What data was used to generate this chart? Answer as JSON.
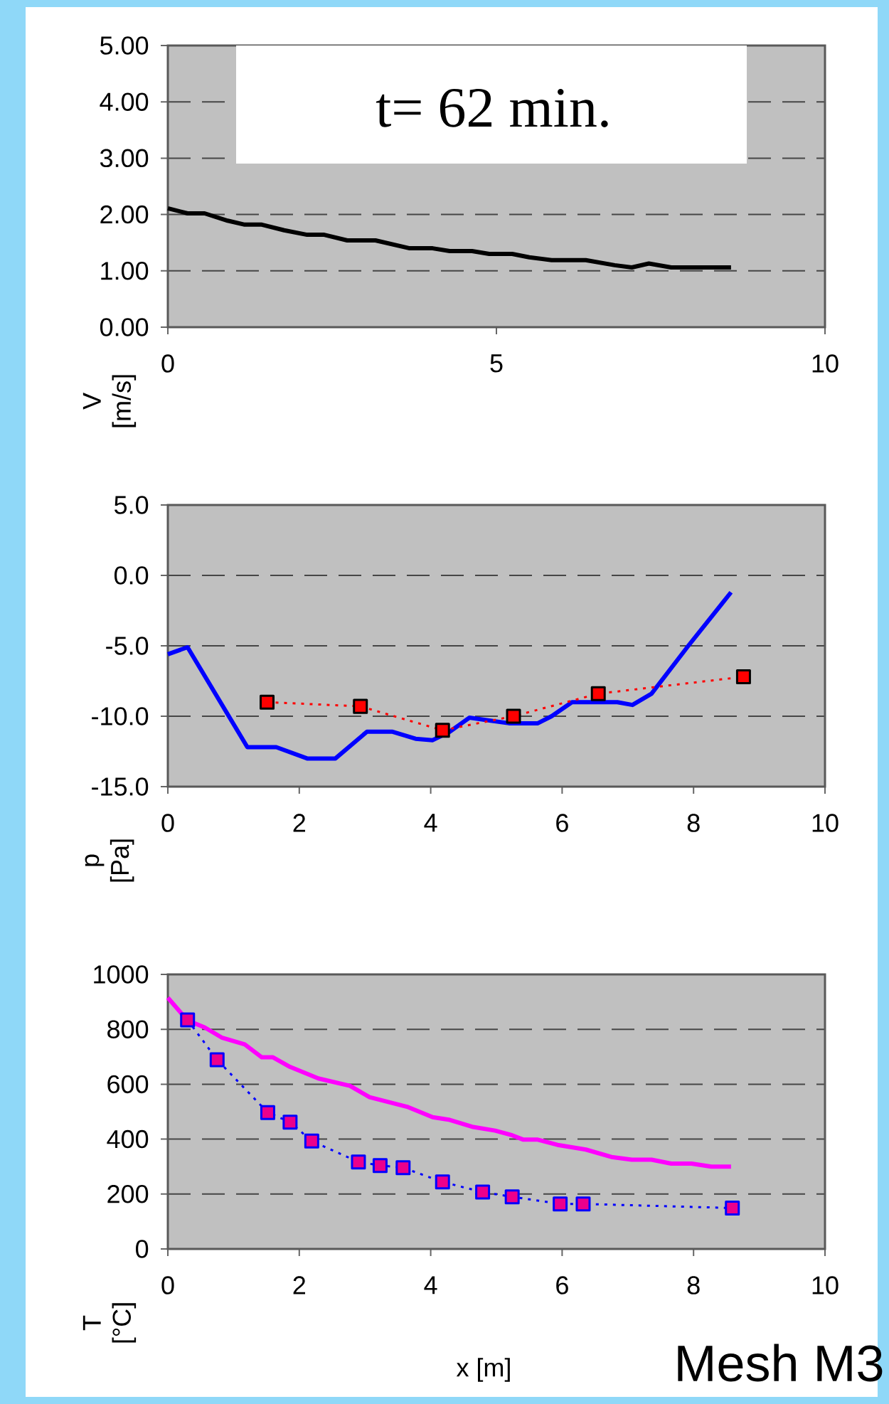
{
  "chart_data": [
    {
      "type": "line",
      "title": "t= 62 min.",
      "ylabel": "V [m/s]",
      "xlim": [
        0,
        10
      ],
      "xticks": [
        0,
        5,
        10
      ],
      "ylim": [
        0,
        5
      ],
      "yticks": [
        {
          "value": 0,
          "label": "0.00"
        },
        {
          "value": 1,
          "label": "1.00"
        },
        {
          "value": 2,
          "label": "2.00"
        },
        {
          "value": 3,
          "label": "3.00"
        },
        {
          "value": 4,
          "label": "4.00"
        },
        {
          "value": 5,
          "label": "5.00"
        }
      ],
      "grid": "y",
      "series": [
        {
          "color": "#000000",
          "line_style": "solid",
          "marker": "none",
          "x": [
            0,
            0.3,
            0.56,
            0.91,
            1.17,
            1.43,
            1.77,
            2.12,
            2.38,
            2.73,
            3.16,
            3.68,
            4.03,
            4.29,
            4.63,
            4.89,
            5.24,
            5.5,
            5.84,
            6.36,
            6.8,
            7.06,
            7.32,
            7.66,
            8.57
          ],
          "values": [
            2.11,
            2.02,
            2.02,
            1.89,
            1.82,
            1.82,
            1.72,
            1.64,
            1.64,
            1.54,
            1.54,
            1.4,
            1.4,
            1.35,
            1.35,
            1.3,
            1.3,
            1.24,
            1.19,
            1.19,
            1.1,
            1.06,
            1.13,
            1.06,
            1.06
          ]
        }
      ]
    },
    {
      "type": "line",
      "ylabel": "p [Pa]",
      "xlim": [
        0,
        10
      ],
      "xticks": [
        0,
        2,
        4,
        6,
        8,
        10
      ],
      "ylim": [
        -15,
        5
      ],
      "yticks": [
        {
          "value": -15,
          "label": "-15.0"
        },
        {
          "value": -10,
          "label": "-10.0"
        },
        {
          "value": -5,
          "label": "-5.0"
        },
        {
          "value": 0,
          "label": "0.0"
        },
        {
          "value": 5,
          "label": "5.0"
        }
      ],
      "grid": "y",
      "series": [
        {
          "color": "#0000ff",
          "line_style": "solid",
          "marker": "none",
          "x": [
            0,
            0.3,
            1.21,
            1.65,
            2.12,
            2.55,
            3.03,
            3.42,
            3.77,
            4.03,
            4.29,
            4.59,
            4.89,
            5.19,
            5.63,
            5.84,
            6.15,
            6.49,
            6.84,
            7.07,
            7.36,
            7.92,
            8.57
          ],
          "values": [
            -5.6,
            -5.1,
            -12.2,
            -12.2,
            -13.0,
            -13.0,
            -11.1,
            -11.1,
            -11.6,
            -11.7,
            -11.1,
            -10.1,
            -10.3,
            -10.5,
            -10.5,
            -10.0,
            -9.0,
            -9.0,
            -9.0,
            -9.2,
            -8.4,
            -5.0,
            -1.2
          ]
        },
        {
          "type": "line",
          "color": "#ff0000",
          "line_style": "dotted",
          "marker": "square",
          "x": [
            1.51,
            2.93,
            4.18,
            5.26,
            6.55,
            8.76
          ],
          "values": [
            -9.0,
            -9.3,
            -11.0,
            -10.0,
            -8.4,
            -7.2
          ]
        }
      ]
    },
    {
      "type": "line",
      "ylabel": "T [°C]",
      "xlabel": "x [m]",
      "annotations": [
        "Mesh M3"
      ],
      "xlim": [
        0,
        10
      ],
      "xticks": [
        0,
        2,
        4,
        6,
        8,
        10
      ],
      "ylim": [
        0,
        1000
      ],
      "yticks": [
        0,
        200,
        400,
        600,
        800,
        1000
      ],
      "grid": "y",
      "series": [
        {
          "color": "#ff00ff",
          "line_style": "solid",
          "marker": "none",
          "x": [
            0,
            0.3,
            0.56,
            0.82,
            1.17,
            1.43,
            1.6,
            1.86,
            2.29,
            2.77,
            3.07,
            3.64,
            4.03,
            4.29,
            4.63,
            4.98,
            5.24,
            5.41,
            5.63,
            5.93,
            6.36,
            6.75,
            7.06,
            7.36,
            7.66,
            7.97,
            8.27,
            8.57
          ],
          "values": [
            915,
            832,
            807,
            770,
            745,
            698,
            698,
            663,
            621,
            594,
            553,
            518,
            480,
            470,
            445,
            431,
            414,
            398,
            398,
            379,
            362,
            335,
            325,
            325,
            311,
            311,
            300,
            300
          ]
        },
        {
          "color": "#0000ff",
          "line_style": "dotted",
          "marker": "square",
          "x": [
            0.3,
            0.75,
            1.52,
            1.86,
            2.19,
            2.9,
            3.23,
            3.58,
            4.18,
            4.79,
            5.24,
            5.97,
            6.32,
            8.59
          ],
          "values": [
            834,
            689,
            497,
            462,
            393,
            317,
            304,
            296,
            244,
            207,
            190,
            164,
            164,
            149
          ]
        }
      ]
    }
  ]
}
